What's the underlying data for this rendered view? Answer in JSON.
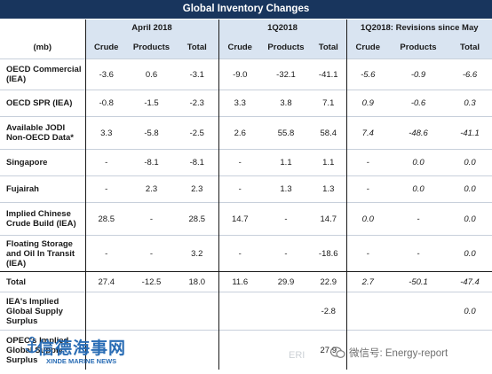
{
  "title": "Global Inventory Changes",
  "groups": [
    "April 2018",
    "1Q2018",
    "1Q2018: Revisions since May"
  ],
  "unit": "(mb)",
  "columns": [
    "Crude",
    "Products",
    "Total",
    "Crude",
    "Products",
    "Total",
    "Crude",
    "Products",
    "Total"
  ],
  "rows": [
    {
      "label": "OECD Commercial (IEA)",
      "values": [
        "-3.6",
        "0.6",
        "-3.1",
        "-9.0",
        "-32.1",
        "-41.1",
        "-5.6",
        "-0.9",
        "-6.6"
      ]
    },
    {
      "label": "OECD SPR (IEA)",
      "values": [
        "-0.8",
        "-1.5",
        "-2.3",
        "3.3",
        "3.8",
        "7.1",
        "0.9",
        "-0.6",
        "0.3"
      ]
    },
    {
      "label": "Available JODI Non-OECD Data*",
      "values": [
        "3.3",
        "-5.8",
        "-2.5",
        "2.6",
        "55.8",
        "58.4",
        "7.4",
        "-48.6",
        "-41.1"
      ]
    },
    {
      "label": "Singapore",
      "values": [
        "-",
        "-8.1",
        "-8.1",
        "-",
        "1.1",
        "1.1",
        "-",
        "0.0",
        "0.0"
      ]
    },
    {
      "label": "Fujairah",
      "values": [
        "-",
        "2.3",
        "2.3",
        "-",
        "1.3",
        "1.3",
        "-",
        "0.0",
        "0.0"
      ]
    },
    {
      "label": "Implied Chinese Crude Build (IEA)",
      "values": [
        "28.5",
        "-",
        "28.5",
        "14.7",
        "-",
        "14.7",
        "0.0",
        "-",
        "0.0"
      ]
    },
    {
      "label": "Floating Storage and Oil In Transit (IEA)",
      "values": [
        "-",
        "-",
        "3.2",
        "-",
        "-",
        "-18.6",
        "-",
        "-",
        "0.0"
      ]
    },
    {
      "label": "Total",
      "values": [
        "27.4",
        "-12.5",
        "18.0",
        "11.6",
        "29.9",
        "22.9",
        "2.7",
        "-50.1",
        "-47.4"
      ]
    },
    {
      "label": "IEA's Implied Global Supply Surplus",
      "values": [
        "",
        "",
        "",
        "",
        "",
        "-2.8",
        "",
        "",
        "0.0"
      ]
    },
    {
      "label": "OPEC's Implied Global Supply Surplus",
      "values": [
        "",
        "",
        "",
        "",
        "",
        "27.9",
        "",
        "",
        ""
      ]
    }
  ],
  "watermarks": {
    "left_cn": "信德海事网",
    "left_en": "XINDE MARINE NEWS",
    "right": "微信号: Energy-report",
    "ghost": "ERI"
  }
}
